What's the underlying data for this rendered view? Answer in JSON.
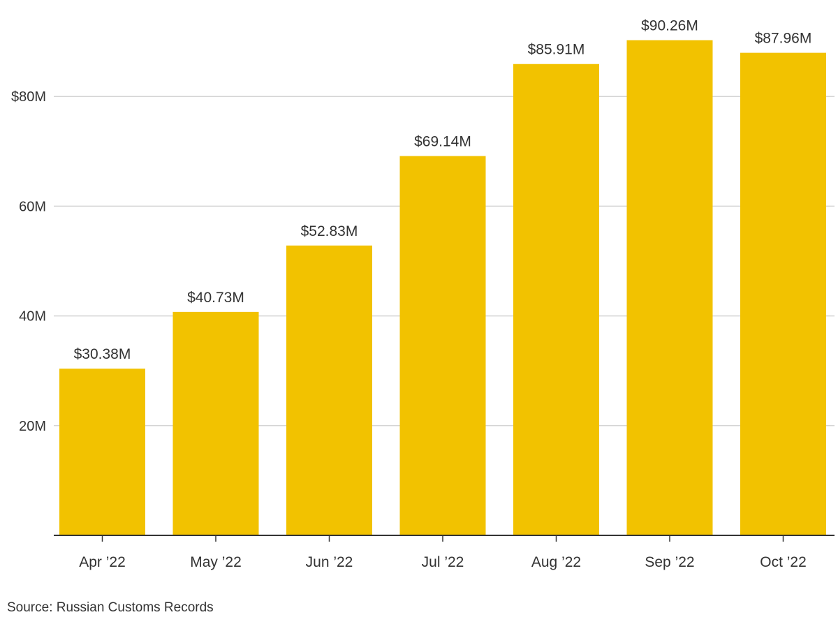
{
  "chart_data": {
    "type": "bar",
    "categories": [
      "Apr ’22",
      "May ’22",
      "Jun ’22",
      "Jul ’22",
      "Aug ’22",
      "Sep ’22",
      "Oct ’22"
    ],
    "values": [
      30.38,
      40.73,
      52.83,
      69.14,
      85.91,
      90.26,
      87.96
    ],
    "data_labels": [
      "$30.38M",
      "$40.73M",
      "$52.83M",
      "$69.14M",
      "$85.91M",
      "$90.26M",
      "$87.96M"
    ],
    "y_ticks": [
      20,
      40,
      60,
      80
    ],
    "y_tick_labels": [
      "20M",
      "40M",
      "60M",
      "$80M"
    ],
    "ylim": [
      0,
      93
    ],
    "grid": true,
    "bar_color": "#F2C200",
    "grid_color": "#d4d4d4",
    "axis_color": "#333333"
  },
  "source": "Source: Russian Customs Records"
}
